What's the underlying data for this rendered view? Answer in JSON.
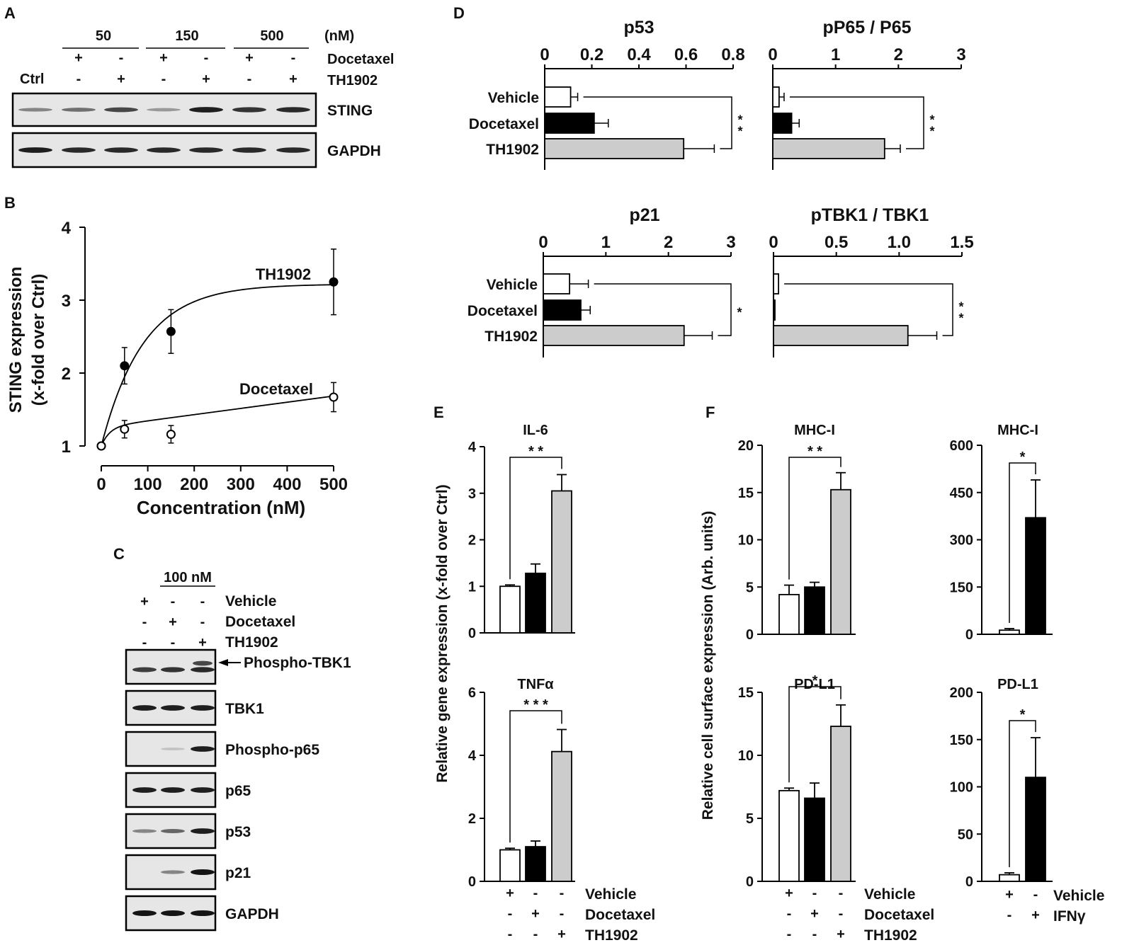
{
  "panel_labels": {
    "A": "A",
    "B": "B",
    "C": "C",
    "D": "D",
    "E": "E",
    "F": "F"
  },
  "panel_a": {
    "conc_unit": "(nM)",
    "concentrations": [
      "50",
      "150",
      "500"
    ],
    "ctrl_label": "Ctrl",
    "row_labels": [
      "Docetaxel",
      "TH1902"
    ],
    "docetaxel_signs": [
      "+",
      "-",
      "+",
      "-",
      "+",
      "-"
    ],
    "th1902_signs": [
      "-",
      "+",
      "-",
      "+",
      "-",
      "+"
    ],
    "blots": [
      {
        "label": "STING",
        "intensity": [
          0.45,
          0.55,
          0.75,
          0.35,
          0.95,
          0.85,
          0.9
        ]
      },
      {
        "label": "GAPDH",
        "intensity": [
          0.95,
          0.9,
          0.9,
          0.9,
          0.9,
          0.9,
          0.9
        ]
      }
    ]
  },
  "panel_c": {
    "dose": "100 nM",
    "rows": [
      {
        "label": "Vehicle",
        "signs": [
          "+",
          "-",
          "-"
        ]
      },
      {
        "label": "Docetaxel",
        "signs": [
          "-",
          "+",
          "-"
        ]
      },
      {
        "label": "TH1902",
        "signs": [
          "-",
          "-",
          "+"
        ]
      }
    ],
    "blots": [
      {
        "label": "Phospho-TBK1",
        "intensity": [
          0.8,
          0.85,
          0.9
        ],
        "arrow": true
      },
      {
        "label": "TBK1",
        "intensity": [
          0.95,
          0.95,
          0.95
        ]
      },
      {
        "label": "Phospho-p65",
        "intensity": [
          0.0,
          0.15,
          0.95
        ]
      },
      {
        "label": "p65",
        "intensity": [
          0.95,
          0.95,
          0.95
        ]
      },
      {
        "label": "p53",
        "intensity": [
          0.45,
          0.6,
          0.95
        ]
      },
      {
        "label": "p21",
        "intensity": [
          0.0,
          0.45,
          1.0
        ]
      },
      {
        "label": "GAPDH",
        "intensity": [
          1.0,
          1.0,
          1.0
        ]
      }
    ]
  },
  "chart_data": [
    {
      "id": "B",
      "type": "scatter",
      "xlabel": "Concentration (nM)",
      "ylabel_lines": [
        "STING expression",
        "(x-fold over Ctrl)"
      ],
      "xlim": [
        0,
        500
      ],
      "ylim": [
        1,
        4
      ],
      "xticks": [
        0,
        100,
        200,
        300,
        400,
        500
      ],
      "yticks": [
        1,
        2,
        3,
        4
      ],
      "series": [
        {
          "name": "TH1902",
          "x": [
            0,
            50,
            150,
            500
          ],
          "y": [
            1.0,
            2.1,
            2.57,
            3.25
          ],
          "err": [
            0.0,
            0.25,
            0.3,
            0.45
          ],
          "fill": "filled"
        },
        {
          "name": "Docetaxel",
          "x": [
            0,
            50,
            150,
            500
          ],
          "y": [
            1.0,
            1.23,
            1.16,
            1.67
          ],
          "err": [
            0.0,
            0.12,
            0.12,
            0.2
          ],
          "fill": "open"
        }
      ]
    },
    {
      "id": "D1",
      "type": "bar",
      "orientation": "horizontal",
      "title": "p53",
      "categories": [
        "Vehicle",
        "Docetaxel",
        "TH1902"
      ],
      "values": [
        0.11,
        0.21,
        0.59
      ],
      "errors": [
        0.03,
        0.06,
        0.13
      ],
      "xlim": [
        0,
        0.8
      ],
      "xticks": [
        "0",
        "0.2",
        "0.4",
        "0.6",
        "0.8"
      ],
      "significance": "**"
    },
    {
      "id": "D2",
      "type": "bar",
      "orientation": "horizontal",
      "title": "pP65 / P65",
      "categories": [
        "Vehicle",
        "Docetaxel",
        "TH1902"
      ],
      "values": [
        0.1,
        0.3,
        1.78
      ],
      "errors": [
        0.08,
        0.12,
        0.25
      ],
      "xlim": [
        0,
        3
      ],
      "xticks": [
        "0",
        "1",
        "2",
        "3"
      ],
      "significance": "**"
    },
    {
      "id": "D3",
      "type": "bar",
      "orientation": "horizontal",
      "title": "p21",
      "categories": [
        "Vehicle",
        "Docetaxel",
        "TH1902"
      ],
      "values": [
        0.42,
        0.6,
        2.25
      ],
      "errors": [
        0.3,
        0.15,
        0.45
      ],
      "xlim": [
        0,
        3
      ],
      "xticks": [
        "0",
        "1",
        "2",
        "3"
      ],
      "significance": "*"
    },
    {
      "id": "D4",
      "type": "bar",
      "orientation": "horizontal",
      "title": "pTBK1 / TBK1",
      "categories": [
        "Vehicle",
        "Docetaxel",
        "TH1902"
      ],
      "values": [
        0.04,
        0.01,
        1.07
      ],
      "errors": [
        0.0,
        0.0,
        0.23
      ],
      "xlim": [
        0,
        1.5
      ],
      "xticks": [
        "0",
        "0.5",
        "1.0",
        "1.5"
      ],
      "significance": "**"
    },
    {
      "id": "E1",
      "type": "bar",
      "title": "IL-6",
      "categories": [
        "Vehicle",
        "Docetaxel",
        "TH1902"
      ],
      "values": [
        1.0,
        1.28,
        3.05
      ],
      "errors": [
        0.03,
        0.2,
        0.35
      ],
      "ylim": [
        0,
        4
      ],
      "yticks": [
        "0",
        "1",
        "2",
        "3",
        "4"
      ],
      "significance": "**"
    },
    {
      "id": "E2",
      "type": "bar",
      "title": "TNFα",
      "categories": [
        "Vehicle",
        "Docetaxel",
        "TH1902"
      ],
      "values": [
        1.0,
        1.1,
        4.12
      ],
      "errors": [
        0.05,
        0.18,
        0.7
      ],
      "ylim": [
        0,
        6
      ],
      "yticks": [
        "0",
        "2",
        "4",
        "6"
      ],
      "significance": "***"
    },
    {
      "id": "F1",
      "type": "bar",
      "title": "MHC-I",
      "categories": [
        "Vehicle",
        "Docetaxel",
        "TH1902"
      ],
      "values": [
        4.2,
        5.0,
        15.3
      ],
      "errors": [
        1.0,
        0.5,
        1.8
      ],
      "ylim": [
        0,
        20
      ],
      "yticks": [
        "0",
        "5",
        "10",
        "15",
        "20"
      ],
      "significance": "**"
    },
    {
      "id": "F2",
      "type": "bar",
      "title": "PD-L1",
      "categories": [
        "Vehicle",
        "Docetaxel",
        "TH1902"
      ],
      "values": [
        7.2,
        6.6,
        12.3
      ],
      "errors": [
        0.2,
        1.2,
        1.7
      ],
      "ylim": [
        0,
        15
      ],
      "yticks": [
        "0",
        "5",
        "10",
        "15"
      ],
      "significance": "*"
    },
    {
      "id": "F3",
      "type": "bar",
      "title": "MHC-I",
      "categories": [
        "Vehicle",
        "IFNγ"
      ],
      "values": [
        13,
        370
      ],
      "errors": [
        5,
        120
      ],
      "ylim": [
        0,
        600
      ],
      "yticks": [
        "0",
        "150",
        "300",
        "450",
        "600"
      ],
      "significance": "*"
    },
    {
      "id": "F4",
      "type": "bar",
      "title": "PD-L1",
      "categories": [
        "Vehicle",
        "IFNγ"
      ],
      "values": [
        7,
        110
      ],
      "errors": [
        2,
        42
      ],
      "ylim": [
        0,
        200
      ],
      "yticks": [
        "0",
        "50",
        "100",
        "150",
        "200"
      ],
      "significance": "*"
    }
  ],
  "axis_labels": {
    "E": "Relative gene expression  (x-fold over Ctrl)",
    "F": "Relative cell surface expression (Arb. units)"
  },
  "treatment_tables": {
    "E": {
      "rows": [
        {
          "label": "Vehicle",
          "signs": [
            "+",
            "-",
            "-"
          ]
        },
        {
          "label": "Docetaxel",
          "signs": [
            "-",
            "+",
            "-"
          ]
        },
        {
          "label": "TH1902",
          "signs": [
            "-",
            "-",
            "+"
          ]
        }
      ]
    },
    "F_left": {
      "rows": [
        {
          "label": "Vehicle",
          "signs": [
            "+",
            "-",
            "-"
          ]
        },
        {
          "label": "Docetaxel",
          "signs": [
            "-",
            "+",
            "-"
          ]
        },
        {
          "label": "TH1902",
          "signs": [
            "-",
            "-",
            "+"
          ]
        }
      ]
    },
    "F_right": {
      "rows": [
        {
          "label": "Vehicle",
          "signs": [
            "+",
            "-"
          ]
        },
        {
          "label": "IFNγ",
          "signs": [
            "-",
            "+"
          ]
        }
      ]
    }
  },
  "colors": {
    "vehicle": "#ffffff",
    "docetaxel": "#000000",
    "th1902": "#cccccc",
    "blot_bg": "#e6e6e6"
  }
}
